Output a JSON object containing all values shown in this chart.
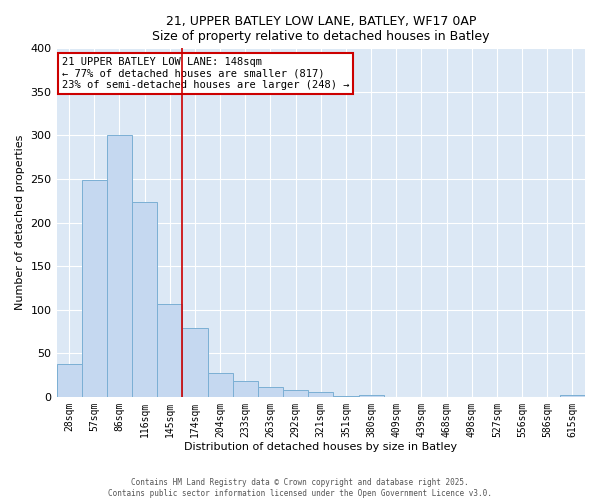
{
  "title": "21, UPPER BATLEY LOW LANE, BATLEY, WF17 0AP",
  "subtitle": "Size of property relative to detached houses in Batley",
  "xlabel": "Distribution of detached houses by size in Batley",
  "ylabel": "Number of detached properties",
  "bar_color": "#c5d8f0",
  "bar_edge_color": "#7bafd4",
  "background_color": "#dce8f5",
  "fig_background": "#ffffff",
  "grid_color": "#ffffff",
  "categories": [
    "28sqm",
    "57sqm",
    "86sqm",
    "116sqm",
    "145sqm",
    "174sqm",
    "204sqm",
    "233sqm",
    "263sqm",
    "292sqm",
    "321sqm",
    "351sqm",
    "380sqm",
    "409sqm",
    "439sqm",
    "468sqm",
    "498sqm",
    "527sqm",
    "556sqm",
    "586sqm",
    "615sqm"
  ],
  "values": [
    38,
    249,
    300,
    224,
    106,
    79,
    27,
    18,
    11,
    8,
    5,
    1,
    2,
    0,
    0,
    0,
    0,
    0,
    0,
    0,
    2
  ],
  "ylim": [
    0,
    400
  ],
  "yticks": [
    0,
    50,
    100,
    150,
    200,
    250,
    300,
    350,
    400
  ],
  "vline_x": 4.5,
  "vline_color": "#cc0000",
  "annotation_line1": "21 UPPER BATLEY LOW LANE: 148sqm",
  "annotation_line2": "← 77% of detached houses are smaller (817)",
  "annotation_line3": "23% of semi-detached houses are larger (248) →",
  "annotation_box_edge": "#cc0000",
  "footer1": "Contains HM Land Registry data © Crown copyright and database right 2025.",
  "footer2": "Contains public sector information licensed under the Open Government Licence v3.0."
}
